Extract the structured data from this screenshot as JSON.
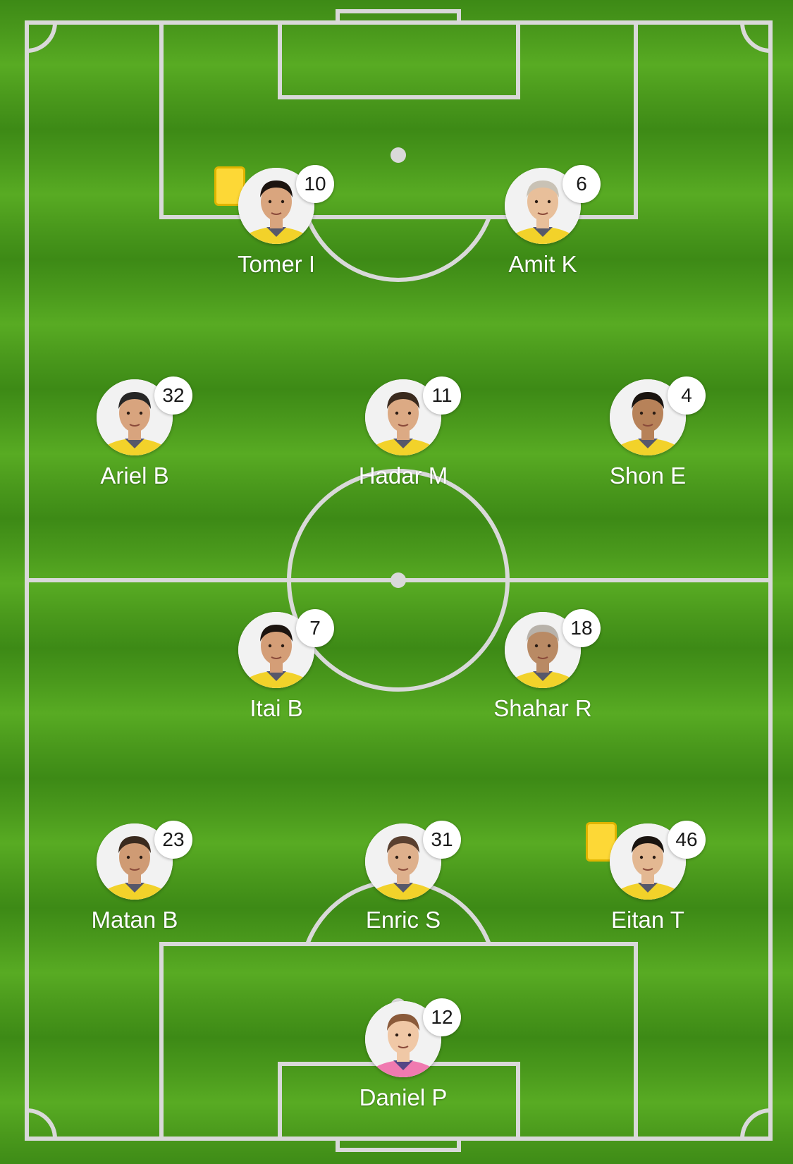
{
  "lineup": {
    "players": [
      {
        "name": "Tomer I",
        "number": "10",
        "yellow_card": true,
        "kit": "yellow",
        "skin": "#d9a57e",
        "hair": "#1c1410"
      },
      {
        "name": "Amit K",
        "number": "6",
        "yellow_card": false,
        "kit": "yellow",
        "skin": "#e8bf9a",
        "hair": "#c9c2b5"
      },
      {
        "name": "Ariel B",
        "number": "32",
        "yellow_card": false,
        "kit": "yellow",
        "skin": "#d8a47e",
        "hair": "#262626"
      },
      {
        "name": "Hadar M",
        "number": "11",
        "yellow_card": false,
        "kit": "yellow",
        "skin": "#dcaa84",
        "hair": "#3a2a1e"
      },
      {
        "name": "Shon E",
        "number": "4",
        "yellow_card": false,
        "kit": "yellow",
        "skin": "#b78259",
        "hair": "#1a1410"
      },
      {
        "name": "Itai B",
        "number": "7",
        "yellow_card": false,
        "kit": "yellow",
        "skin": "#d49e77",
        "hair": "#1c1410"
      },
      {
        "name": "Shahar R",
        "number": "18",
        "yellow_card": false,
        "kit": "yellow",
        "skin": "#b98a64",
        "hair": "#b8b2aa"
      },
      {
        "name": "Matan B",
        "number": "23",
        "yellow_card": false,
        "kit": "yellow",
        "skin": "#cf9b74",
        "hair": "#3a2a1e"
      },
      {
        "name": "Enric S",
        "number": "31",
        "yellow_card": false,
        "kit": "yellow",
        "skin": "#deb08c",
        "hair": "#5a4030"
      },
      {
        "name": "Eitan T",
        "number": "46",
        "yellow_card": true,
        "kit": "yellow",
        "skin": "#e3b892",
        "hair": "#1a1410"
      },
      {
        "name": "Daniel P",
        "number": "12",
        "yellow_card": false,
        "kit": "pink",
        "skin": "#f0c8a6",
        "hair": "#8a5a3a"
      }
    ]
  },
  "colors": {
    "pitch_dark": "#3d8a16",
    "pitch_light": "#58ab23",
    "line": "#d9d9d9",
    "card": "#fdd836",
    "kit_yellow": "#f2d22a",
    "kit_pink": "#f07ab0"
  }
}
